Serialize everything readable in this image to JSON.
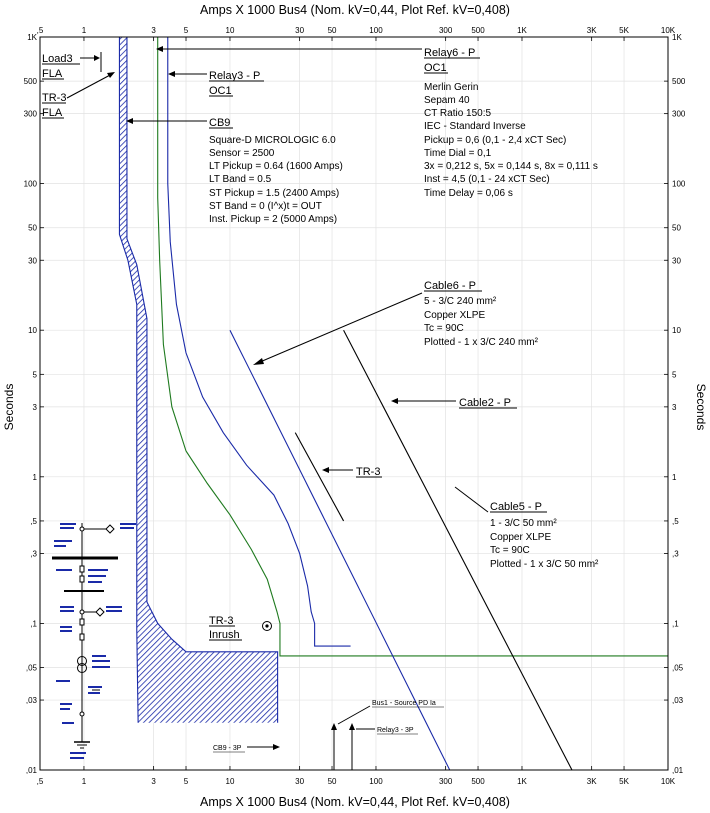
{
  "header_top": "Amps  X  1000   Bus4 (Nom. kV=0,44, Plot Ref. kV=0,408)",
  "header_bottom": "Amps  X  1000   Bus4 (Nom. kV=0,44, Plot Ref. kV=0,408)",
  "y_axis_label": "Seconds",
  "chart_data": {
    "type": "line",
    "x_scale": "log",
    "y_scale": "log",
    "xlim": [
      0.5,
      10000
    ],
    "ylim": [
      0.01,
      1000
    ],
    "x_ticks": [
      {
        "v": 0.5,
        "t": ",5"
      },
      {
        "v": 1,
        "t": "1"
      },
      {
        "v": 3,
        "t": "3"
      },
      {
        "v": 5,
        "t": "5"
      },
      {
        "v": 10,
        "t": "10"
      },
      {
        "v": 30,
        "t": "30"
      },
      {
        "v": 50,
        "t": "50"
      },
      {
        "v": 100,
        "t": "100"
      },
      {
        "v": 300,
        "t": "300"
      },
      {
        "v": 500,
        "t": "500"
      },
      {
        "v": 1000,
        "t": "1K"
      },
      {
        "v": 3000,
        "t": "3K"
      },
      {
        "v": 5000,
        "t": "5K"
      },
      {
        "v": 10000,
        "t": "10K"
      }
    ],
    "y_ticks": [
      {
        "v": 0.01,
        "t": ",01"
      },
      {
        "v": 0.03,
        "t": ",03"
      },
      {
        "v": 0.05,
        "t": ",05"
      },
      {
        "v": 0.1,
        "t": ",1"
      },
      {
        "v": 0.3,
        "t": ",3"
      },
      {
        "v": 0.5,
        "t": ",5"
      },
      {
        "v": 1,
        "t": "1"
      },
      {
        "v": 3,
        "t": "3"
      },
      {
        "v": 5,
        "t": "5"
      },
      {
        "v": 10,
        "t": "10"
      },
      {
        "v": 30,
        "t": "30"
      },
      {
        "v": 50,
        "t": "50"
      },
      {
        "v": 100,
        "t": "100"
      },
      {
        "v": 300,
        "t": "300"
      },
      {
        "v": 500,
        "t": "500"
      },
      {
        "v": 1000,
        "t": "1K"
      }
    ],
    "series": [
      {
        "name": "CB9",
        "kind": "band",
        "color": "#1a2aa8",
        "left": [
          [
            1.75,
            1000
          ],
          [
            1.75,
            45
          ],
          [
            2.0,
            30
          ],
          [
            2.3,
            15
          ],
          [
            2.3,
            0.09
          ],
          [
            2.35,
            0.021
          ]
        ],
        "right": [
          [
            1.97,
            1000
          ],
          [
            1.97,
            42
          ],
          [
            2.3,
            28
          ],
          [
            2.7,
            12
          ],
          [
            2.7,
            0.14
          ],
          [
            3.2,
            0.1
          ],
          [
            4.0,
            0.078
          ],
          [
            5.0,
            0.064
          ],
          [
            21.2,
            0.064
          ],
          [
            21.2,
            0.021
          ]
        ]
      },
      {
        "name": "Relay6 - P",
        "color": "#1f7a1f",
        "points": [
          [
            3.2,
            1000
          ],
          [
            3.2,
            80
          ],
          [
            3.3,
            30
          ],
          [
            3.5,
            8
          ],
          [
            4.0,
            3
          ],
          [
            5.0,
            1.5
          ],
          [
            7.0,
            0.9
          ],
          [
            10.0,
            0.55
          ],
          [
            14.0,
            0.32
          ],
          [
            18.0,
            0.2
          ],
          [
            21.0,
            0.12
          ],
          [
            22.0,
            0.1
          ],
          [
            22.0,
            0.06
          ],
          [
            10000,
            0.06
          ]
        ]
      },
      {
        "name": "Relay3 - P",
        "color": "#1a2aa8",
        "points": [
          [
            3.75,
            1000
          ],
          [
            3.75,
            100
          ],
          [
            3.9,
            40
          ],
          [
            4.3,
            15
          ],
          [
            5.0,
            7
          ],
          [
            6.5,
            3.5
          ],
          [
            9.0,
            2.0
          ],
          [
            13.0,
            1.2
          ],
          [
            20.0,
            0.75
          ],
          [
            25.0,
            0.48
          ],
          [
            30.0,
            0.3
          ],
          [
            34.0,
            0.18
          ],
          [
            36.0,
            0.12
          ],
          [
            38.0,
            0.1
          ],
          [
            38.0,
            0.07
          ],
          [
            67,
            0.07
          ]
        ]
      },
      {
        "name": "Cable6 - P",
        "color": "#1a2aa8",
        "points": [
          [
            10,
            10
          ],
          [
            320,
            0.01
          ]
        ]
      },
      {
        "name": "Cable5 - P",
        "color": "#000000",
        "points": [
          [
            60,
            10
          ],
          [
            2200,
            0.01
          ]
        ]
      },
      {
        "name": "TR-3",
        "color": "#000000",
        "points": [
          [
            28,
            2
          ],
          [
            60,
            0.5
          ]
        ]
      }
    ],
    "annotations": {
      "load3": [
        "Load3",
        "FLA"
      ],
      "tr3fla": [
        "TR-3",
        "FLA"
      ],
      "relay6": {
        "name": "Relay6 - P",
        "id": "OC1",
        "lines": [
          "Merlin Gerin",
          "Sepam 40",
          "CT Ratio 150:5",
          "IEC - Standard Inverse",
          "Pickup = 0,6 (0,1 - 2,4  xCT Sec)",
          "Time Dial = 0,1",
          "3x = 0,212 s, 5x = 0,144 s, 8x = 0,111 s",
          "Inst = 4,5 (0,1 - 24  xCT Sec)",
          "Time Delay = 0,06 s"
        ]
      },
      "relay3": {
        "name": "Relay3 - P",
        "id": "OC1"
      },
      "cb9": {
        "name": "CB9",
        "lines": [
          "Square-D  MICROLOGIC 6.0",
          "Sensor = 2500",
          "LT Pickup = 0.64 (1600 Amps)",
          "LT Band = 0.5",
          "ST Pickup = 1.5 (2400 Amps)",
          "ST Band = 0  (I^x)t = OUT",
          "Inst. Pickup = 2 (5000 Amps)"
        ]
      },
      "cable6": {
        "name": "Cable6 - P",
        "lines": [
          "5 - 3/C 240 mm²",
          "Copper  XLPE",
          "Tc = 90C",
          "Plotted - 1 x 3/C 240 mm²"
        ]
      },
      "cable2": "Cable2 - P",
      "tr3": "TR-3",
      "cable5": {
        "name": "Cable5 - P",
        "lines": [
          "1 - 3/C 50 mm²",
          "Copper  XLPE",
          "Tc = 90C",
          "Plotted - 1 x 3/C 50 mm²"
        ]
      },
      "tr3inrush": [
        "TR-3",
        "Inrush"
      ],
      "bus1": "Bus1 - Source PD Ia",
      "relay3_3p": "Relay3 - 3P",
      "cb9_3p": "CB9 - 3P"
    }
  }
}
